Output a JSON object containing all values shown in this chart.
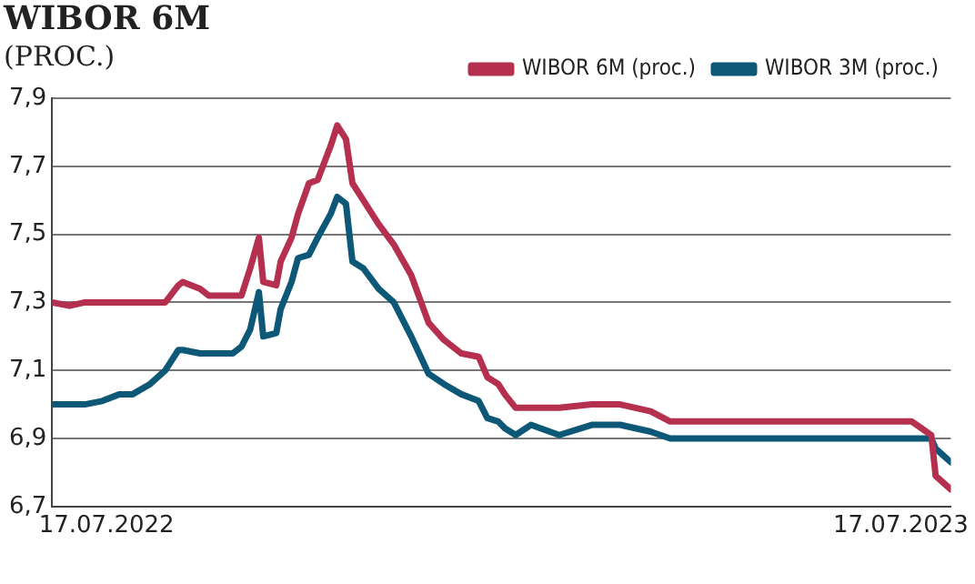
{
  "chart_data": {
    "type": "line",
    "title": "WIBOR 6M",
    "subtitle": "(PROC.)",
    "x": [
      "2022-06-22",
      "2022-06-30",
      "2022-07-07",
      "2022-07-15",
      "2022-07-23",
      "2022-07-29",
      "2022-08-06",
      "2022-08-13",
      "2022-08-19",
      "2022-08-21",
      "2022-08-29",
      "2022-09-02",
      "2022-09-13",
      "2022-09-17",
      "2022-09-21",
      "2022-09-25",
      "2022-09-27",
      "2022-10-03",
      "2022-10-05",
      "2022-10-10",
      "2022-10-13",
      "2022-10-18",
      "2022-10-22",
      "2022-10-28",
      "2022-10-31",
      "2022-11-04",
      "2022-11-07",
      "2022-11-12",
      "2022-11-19",
      "2022-11-26",
      "2022-12-04",
      "2022-12-12",
      "2022-12-19",
      "2022-12-27",
      "2023-01-04",
      "2023-01-08",
      "2023-01-13",
      "2023-01-16",
      "2023-01-21",
      "2023-01-28",
      "2023-02-10",
      "2023-02-25",
      "2023-03-10",
      "2023-03-24",
      "2023-04-02",
      "2023-04-10",
      "2023-04-21",
      "2023-05-14",
      "2023-06-04",
      "2023-06-27",
      "2023-07-22",
      "2023-07-31",
      "2023-08-02",
      "2023-08-09"
    ],
    "series": [
      {
        "name": "WIBOR 6M (proc.)",
        "color": "#b5304f",
        "values": [
          7.3,
          7.29,
          7.3,
          7.3,
          7.3,
          7.3,
          7.3,
          7.3,
          7.35,
          7.36,
          7.34,
          7.32,
          7.32,
          7.32,
          7.4,
          7.49,
          7.36,
          7.35,
          7.42,
          7.49,
          7.56,
          7.65,
          7.66,
          7.76,
          7.82,
          7.78,
          7.65,
          7.6,
          7.53,
          7.47,
          7.38,
          7.24,
          7.19,
          7.15,
          7.14,
          7.08,
          7.06,
          7.03,
          6.99,
          6.99,
          6.99,
          7.0,
          7.0,
          6.98,
          6.95,
          6.95,
          6.95,
          6.95,
          6.95,
          6.95,
          6.95,
          6.91,
          6.79,
          6.75
        ]
      },
      {
        "name": "WIBOR 3M (proc.)",
        "color": "#0d5777",
        "values": [
          7.0,
          7.0,
          7.0,
          7.01,
          7.03,
          7.03,
          7.06,
          7.1,
          7.16,
          7.16,
          7.15,
          7.15,
          7.15,
          7.17,
          7.22,
          7.33,
          7.2,
          7.21,
          7.28,
          7.36,
          7.43,
          7.44,
          7.49,
          7.56,
          7.61,
          7.59,
          7.42,
          7.4,
          7.34,
          7.3,
          7.2,
          7.09,
          7.06,
          7.03,
          7.01,
          6.96,
          6.95,
          6.93,
          6.91,
          6.94,
          6.91,
          6.94,
          6.94,
          6.92,
          6.9,
          6.9,
          6.9,
          6.9,
          6.9,
          6.9,
          6.9,
          6.9,
          6.87,
          6.83
        ]
      }
    ],
    "xlim": [
      "2022-06-22",
      "2023-08-09"
    ],
    "xticks": [
      {
        "value": "2022-07-17",
        "label": "17.07.2022"
      },
      {
        "value": "2023-07-17",
        "label": "17.07.2023"
      }
    ],
    "ylim": [
      6.7,
      7.9
    ],
    "yticks": [
      {
        "value": 6.7,
        "label": "6,7"
      },
      {
        "value": 6.9,
        "label": "6,9"
      },
      {
        "value": 7.1,
        "label": "7,1"
      },
      {
        "value": 7.3,
        "label": "7,3"
      },
      {
        "value": 7.5,
        "label": "7,5"
      },
      {
        "value": 7.7,
        "label": "7,7"
      },
      {
        "value": 7.9,
        "label": "7,9"
      }
    ],
    "grid": "y",
    "legend": "top right",
    "marker": "none",
    "line_style": "solid"
  }
}
